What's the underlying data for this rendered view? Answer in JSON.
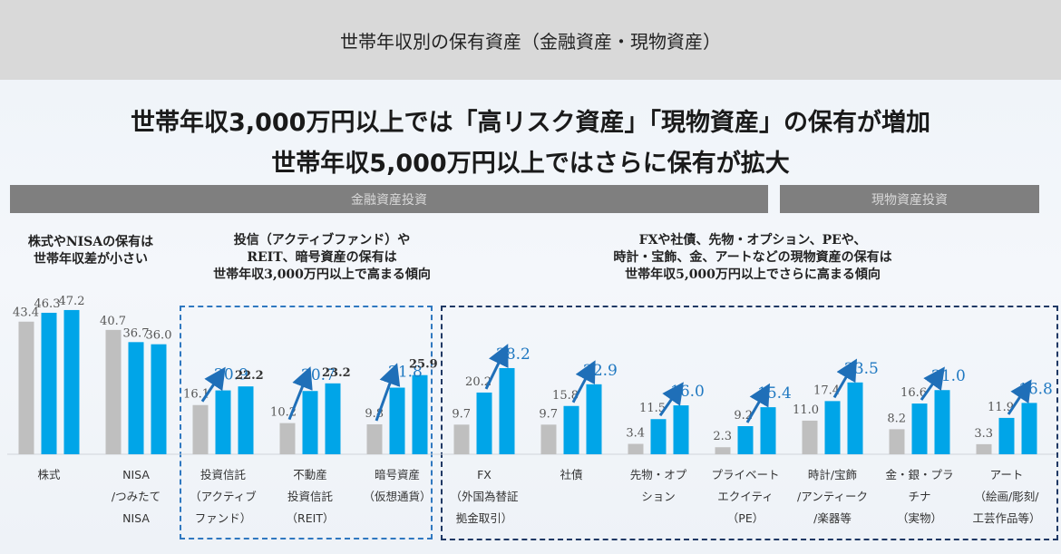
{
  "header": {
    "title": "世帯年収別の保有資産（金融資産・現物資産）"
  },
  "headline": {
    "line1": "世帯年収3,000万円以上では「高リスク資産」「現物資産」の保有が増加",
    "line2": "世帯年収5,000万円以上ではさらに保有が拡大"
  },
  "sections": {
    "financial": "金融資産投資",
    "physical": "現物資産投資"
  },
  "notes": {
    "left": [
      "株式やNISAの保有は",
      "世帯年収差が小さい"
    ],
    "middle": [
      "投信（アクティブファンド）や",
      "REIT、暗号資産の保有は",
      "世帯年収3,000万円以上で高まる傾向"
    ],
    "right": [
      "FXや社債、先物・オプション、PEや、",
      "時計・宝飾、金、アートなどの現物資産の保有は",
      "世帯年収5,000万円以上でさらに高まる傾向"
    ]
  },
  "colors": {
    "gray_bar": "#bfbfbf",
    "blue_bar": "#00a5e8",
    "arrow": "#1f6fb8",
    "highlight_label": "#1f78c1",
    "dash_middle": "#2f78c0",
    "dash_right": "#1f3864"
  },
  "chart_data": {
    "type": "bar",
    "title": "世帯年収別の保有資産（金融資産・現物資産）",
    "xlabel": "",
    "ylabel": "",
    "ylim": [
      0,
      50
    ],
    "grid": false,
    "legend": "none",
    "series_count": 3,
    "series_colors": [
      "gray",
      "blue",
      "blue"
    ],
    "categories": [
      "株式\nNISA",
      "NISA\n/つみたて\nNISA",
      "投資信託\n（アクティブ\nファンド）",
      "不動産\n投資信託\n（REIT）",
      "暗号資産\n（仮想通貨）",
      "FX\n（外国為替証\n拠金取引）",
      "社債",
      "先物・オプ\nション",
      "プライベート\nエクイティ\n（PE）",
      "時計/宝飾\n/アンティーク\n/楽器等",
      "金・銀・プラ\nチナ\n（実物）",
      "アート\n（絵画/彫刻/\n工芸作品等）"
    ],
    "category_labels": [
      [
        "株式"
      ],
      [
        "NISA",
        "/つみたて",
        "NISA"
      ],
      [
        "投資信託",
        "（アクティブ",
        "ファンド）"
      ],
      [
        "不動産",
        "投資信託",
        "（REIT）"
      ],
      [
        "暗号資産",
        "（仮想通貨）"
      ],
      [
        "FX",
        "（外国為替証",
        "拠金取引）"
      ],
      [
        "社債"
      ],
      [
        "先物・オプ",
        "ション"
      ],
      [
        "プライベート",
        "エクイティ",
        "（PE）"
      ],
      [
        "時計/宝飾",
        "/アンティーク",
        "/楽器等"
      ],
      [
        "金・銀・プラ",
        "チナ",
        "（実物）"
      ],
      [
        "アート",
        "（絵画/彫刻/",
        "工芸作品等）"
      ]
    ],
    "series": [
      {
        "name": "series1",
        "values": [
          43.4,
          40.7,
          16.1,
          10.2,
          9.8,
          9.7,
          9.7,
          3.4,
          2.3,
          11.0,
          8.2,
          3.3
        ]
      },
      {
        "name": "series2",
        "values": [
          46.3,
          36.7,
          20.9,
          20.7,
          21.8,
          20.2,
          15.8,
          11.5,
          9.2,
          17.4,
          16.6,
          11.9
        ]
      },
      {
        "name": "series3",
        "values": [
          47.2,
          36.0,
          22.2,
          23.2,
          25.9,
          28.2,
          22.9,
          16.0,
          15.4,
          23.5,
          21.0,
          16.8
        ]
      }
    ],
    "highlight": {
      "comment": "index of series whose label is shown in blue with an up-arrow from the previous bar",
      "per_category": [
        null,
        null,
        1,
        1,
        1,
        2,
        2,
        2,
        2,
        2,
        2,
        2
      ]
    },
    "groups": [
      {
        "name": "金融資産投資",
        "categories": [
          0,
          1,
          2,
          3,
          4
        ]
      },
      {
        "name": "現物資産投資",
        "categories": [
          5,
          6,
          7,
          8,
          9,
          10,
          11
        ]
      }
    ]
  }
}
